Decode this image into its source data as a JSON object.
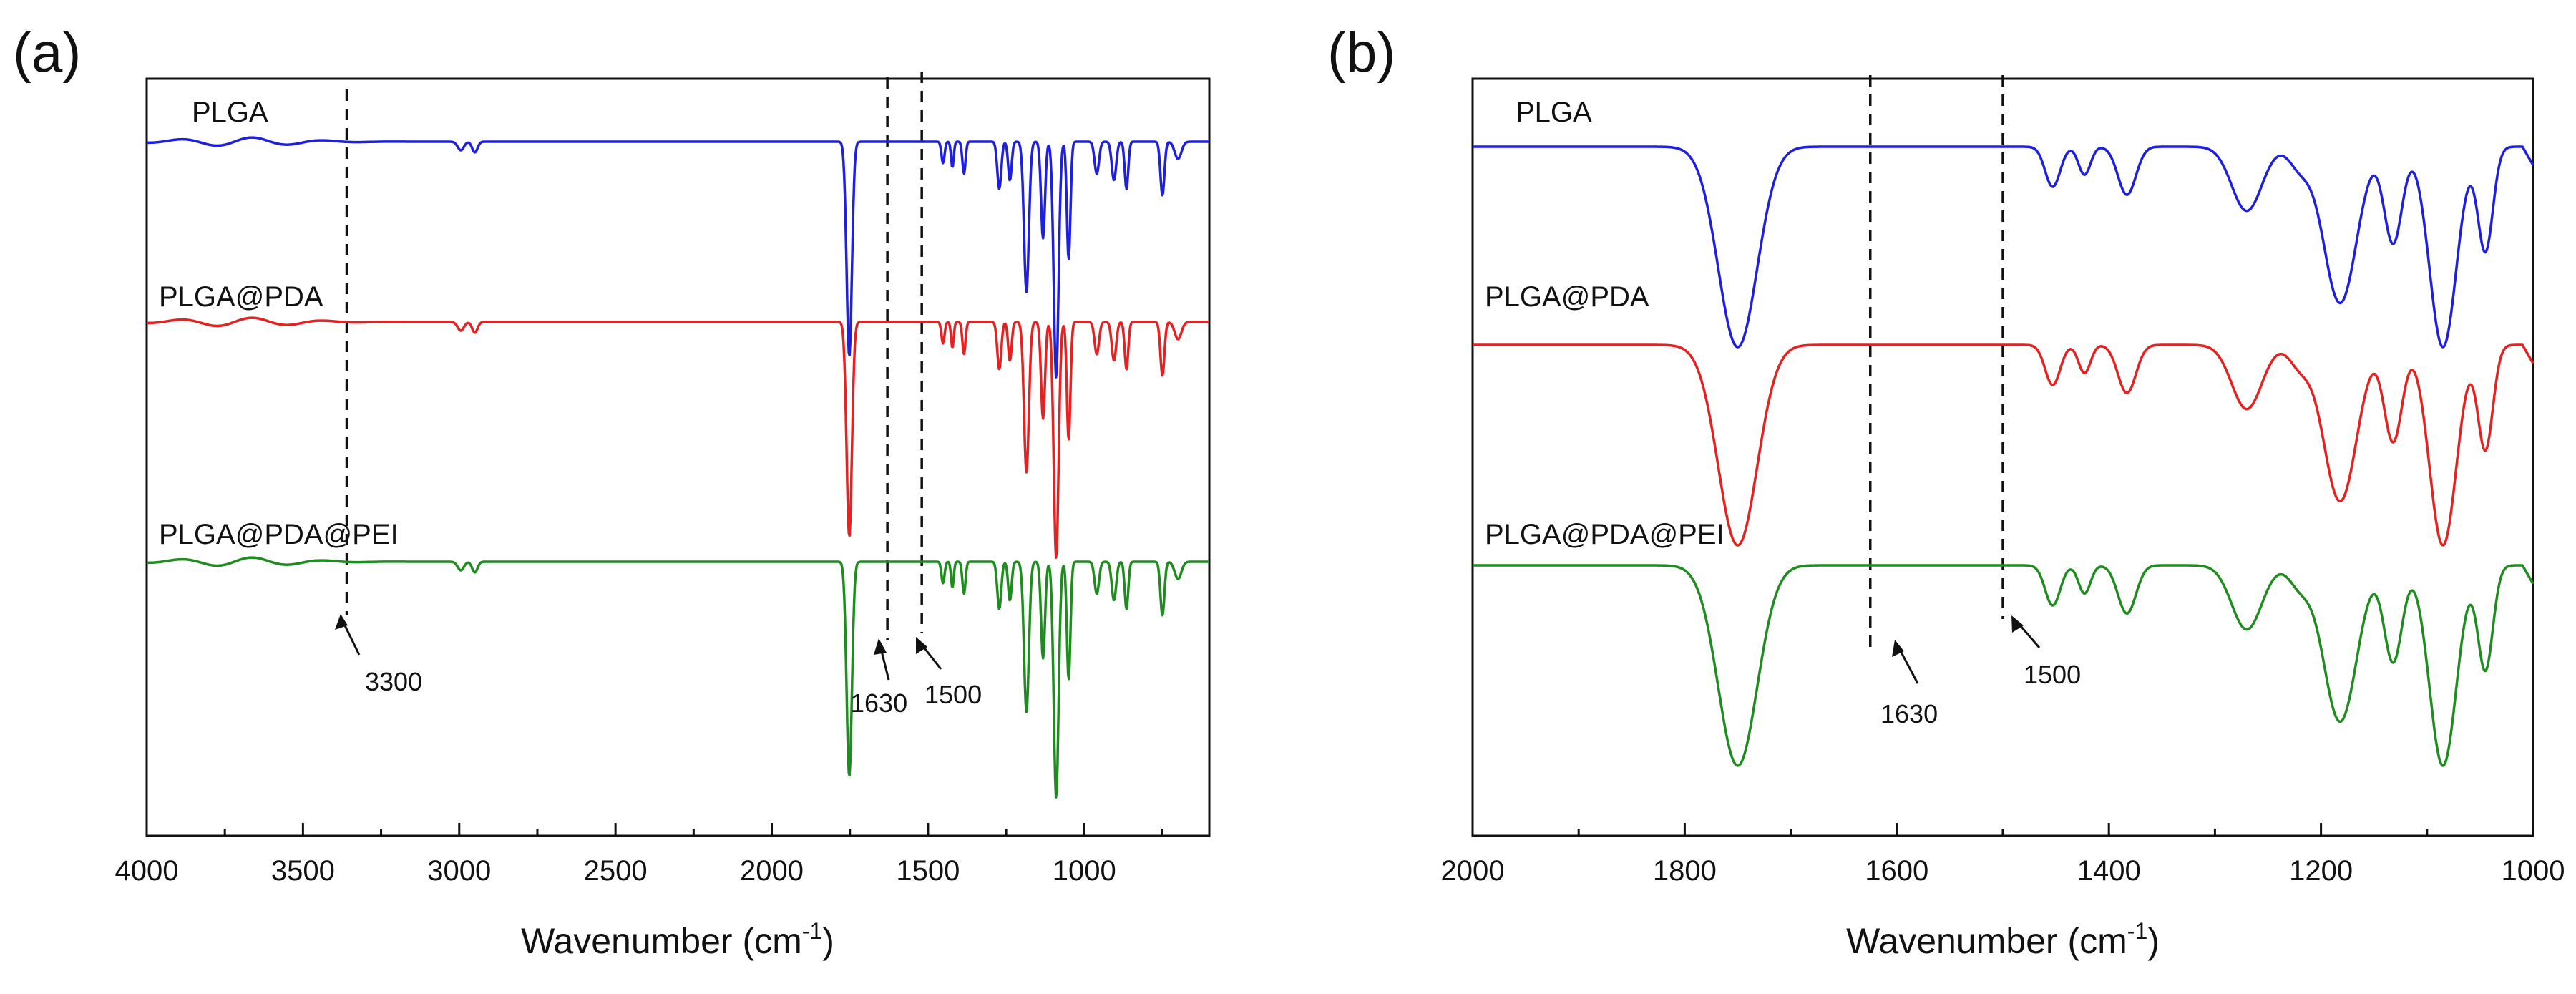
{
  "chart_data": [
    {
      "type": "line",
      "panel_label": "(a)",
      "xlabel": "Wavenumber (cm",
      "xlabel_sup": "-1",
      "xlabel_end": ")",
      "ylabel": "",
      "xlim": [
        4000,
        600
      ],
      "x_ticks": [
        4000,
        3500,
        3000,
        2500,
        2000,
        1500,
        1000
      ],
      "x_tick_labels": [
        "4000",
        "3500",
        "3000",
        "2500",
        "2000",
        "1500",
        "1000"
      ],
      "series": [
        {
          "name": "PLGA",
          "color": "#1f1fe0",
          "offset": 0
        },
        {
          "name": "PLGA@PDA",
          "color": "#e52121",
          "offset": 1
        },
        {
          "name": "PLGA@PDA@PEI",
          "color": "#1f8c1f",
          "offset": 2
        }
      ],
      "reference_lines": [
        {
          "x": 3360,
          "label": "3300"
        },
        {
          "x": 1630,
          "label": "1630"
        },
        {
          "x": 1520,
          "label": "1500"
        }
      ]
    },
    {
      "type": "line",
      "panel_label": "(b)",
      "xlabel": "Wavenumber (cm",
      "xlabel_sup": "-1",
      "xlabel_end": ")",
      "ylabel": "",
      "xlim": [
        2000,
        1000
      ],
      "x_ticks": [
        2000,
        1800,
        1600,
        1400,
        1200,
        1000
      ],
      "x_tick_labels": [
        "2000",
        "1800",
        "1600",
        "1400",
        "1200",
        "1000"
      ],
      "series": [
        {
          "name": "PLGA",
          "color": "#1f1fe0",
          "offset": 0
        },
        {
          "name": "PLGA@PDA",
          "color": "#e52121",
          "offset": 1
        },
        {
          "name": "PLGA@PDA@PEI",
          "color": "#1f8c1f",
          "offset": 2
        }
      ],
      "reference_lines": [
        {
          "x": 1625,
          "label": "1630"
        },
        {
          "x": 1500,
          "label": "1500"
        }
      ]
    }
  ]
}
